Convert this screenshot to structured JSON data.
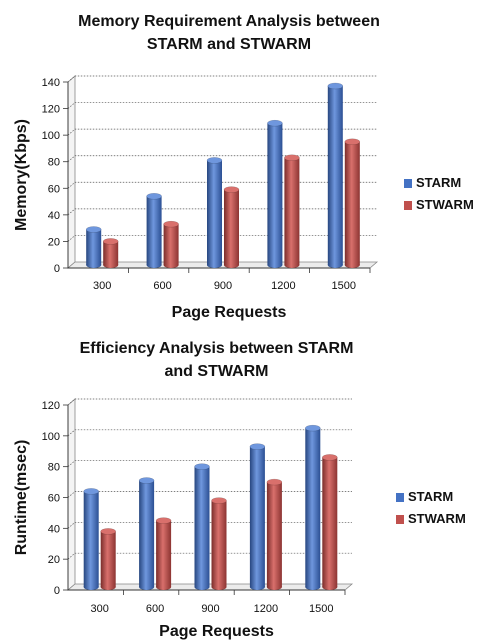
{
  "chart_data": [
    {
      "type": "bar",
      "title_lines": [
        "Memory Requirement Analysis between",
        "STARM and STWARM"
      ],
      "xlabel": "Page Requests",
      "ylabel": "Memory(Kbps)",
      "categories": [
        "300",
        "600",
        "900",
        "1200",
        "1500"
      ],
      "ylim": [
        0,
        140
      ],
      "yticks": [
        0,
        20,
        40,
        60,
        80,
        100,
        120,
        140
      ],
      "grid": true,
      "legend_position": "right",
      "series": [
        {
          "name": "STARM",
          "values": [
            29,
            54,
            81,
            109,
            137
          ],
          "color": "#4472c4"
        },
        {
          "name": "STWARM",
          "values": [
            20,
            33,
            59,
            83,
            95
          ],
          "color": "#c0504d"
        }
      ]
    },
    {
      "type": "bar",
      "title_lines": [
        "Efficiency Analysis between STARM",
        "and STWARM"
      ],
      "xlabel": "Page Requests",
      "ylabel": "Runtime(msec)",
      "categories": [
        "300",
        "600",
        "900",
        "1200",
        "1500"
      ],
      "ylim": [
        0,
        120
      ],
      "yticks": [
        0,
        20,
        40,
        60,
        80,
        100,
        120
      ],
      "grid": true,
      "legend_position": "right",
      "series": [
        {
          "name": "STARM",
          "values": [
            64,
            71,
            80,
            93,
            105
          ],
          "color": "#4472c4"
        },
        {
          "name": "STWARM",
          "values": [
            38,
            45,
            58,
            70,
            86
          ],
          "color": "#c0504d"
        }
      ]
    }
  ]
}
